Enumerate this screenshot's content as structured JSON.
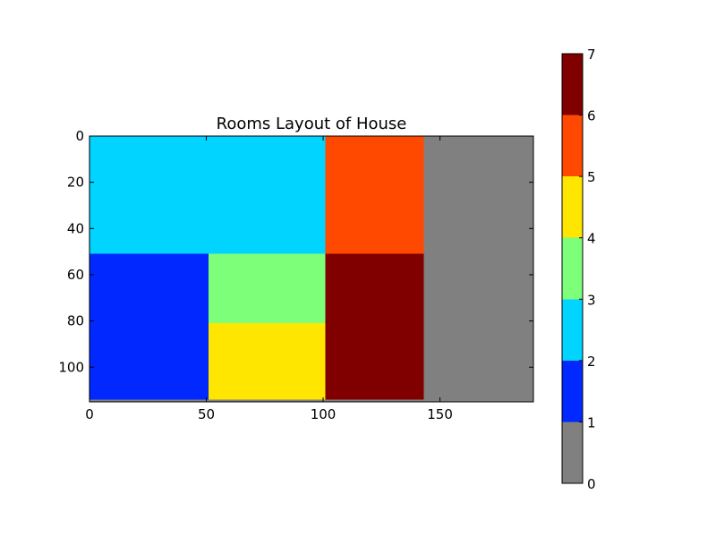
{
  "chart_data": {
    "type": "heatmap",
    "title": "Rooms Layout of House",
    "xlabel": "",
    "ylabel": "",
    "xlim": [
      0,
      190
    ],
    "ylim": [
      115,
      0
    ],
    "x_ticks": [
      0,
      50,
      100,
      150
    ],
    "y_ticks": [
      0,
      20,
      40,
      60,
      80,
      100
    ],
    "grid": false,
    "regions": [
      {
        "x": [
          0,
          101
        ],
        "y": [
          0,
          51
        ],
        "value": 2.5
      },
      {
        "x": [
          101,
          143
        ],
        "y": [
          0,
          51
        ],
        "value": 5.5
      },
      {
        "x": [
          143,
          190
        ],
        "y": [
          0,
          115
        ],
        "value": 0.5
      },
      {
        "x": [
          0,
          51
        ],
        "y": [
          51,
          114
        ],
        "value": 1.5
      },
      {
        "x": [
          51,
          101
        ],
        "y": [
          51,
          81
        ],
        "value": 3.5
      },
      {
        "x": [
          51,
          101
        ],
        "y": [
          81,
          114
        ],
        "value": 4.5
      },
      {
        "x": [
          101,
          143
        ],
        "y": [
          51,
          114
        ],
        "value": 6.5
      },
      {
        "x": [
          0,
          143
        ],
        "y": [
          114,
          115
        ],
        "value": 0.5
      }
    ],
    "colorbar": {
      "ticks": [
        0,
        1,
        2,
        3,
        4,
        5,
        6,
        7
      ],
      "bins": [
        {
          "range": [
            0,
            1
          ],
          "color": "#808080"
        },
        {
          "range": [
            1,
            2
          ],
          "color": "#0028ff"
        },
        {
          "range": [
            2,
            3
          ],
          "color": "#00d4ff"
        },
        {
          "range": [
            3,
            4
          ],
          "color": "#7dff7a"
        },
        {
          "range": [
            4,
            5
          ],
          "color": "#ffe600"
        },
        {
          "range": [
            5,
            6
          ],
          "color": "#ff4800"
        },
        {
          "range": [
            6,
            7
          ],
          "color": "#800000"
        }
      ]
    }
  }
}
